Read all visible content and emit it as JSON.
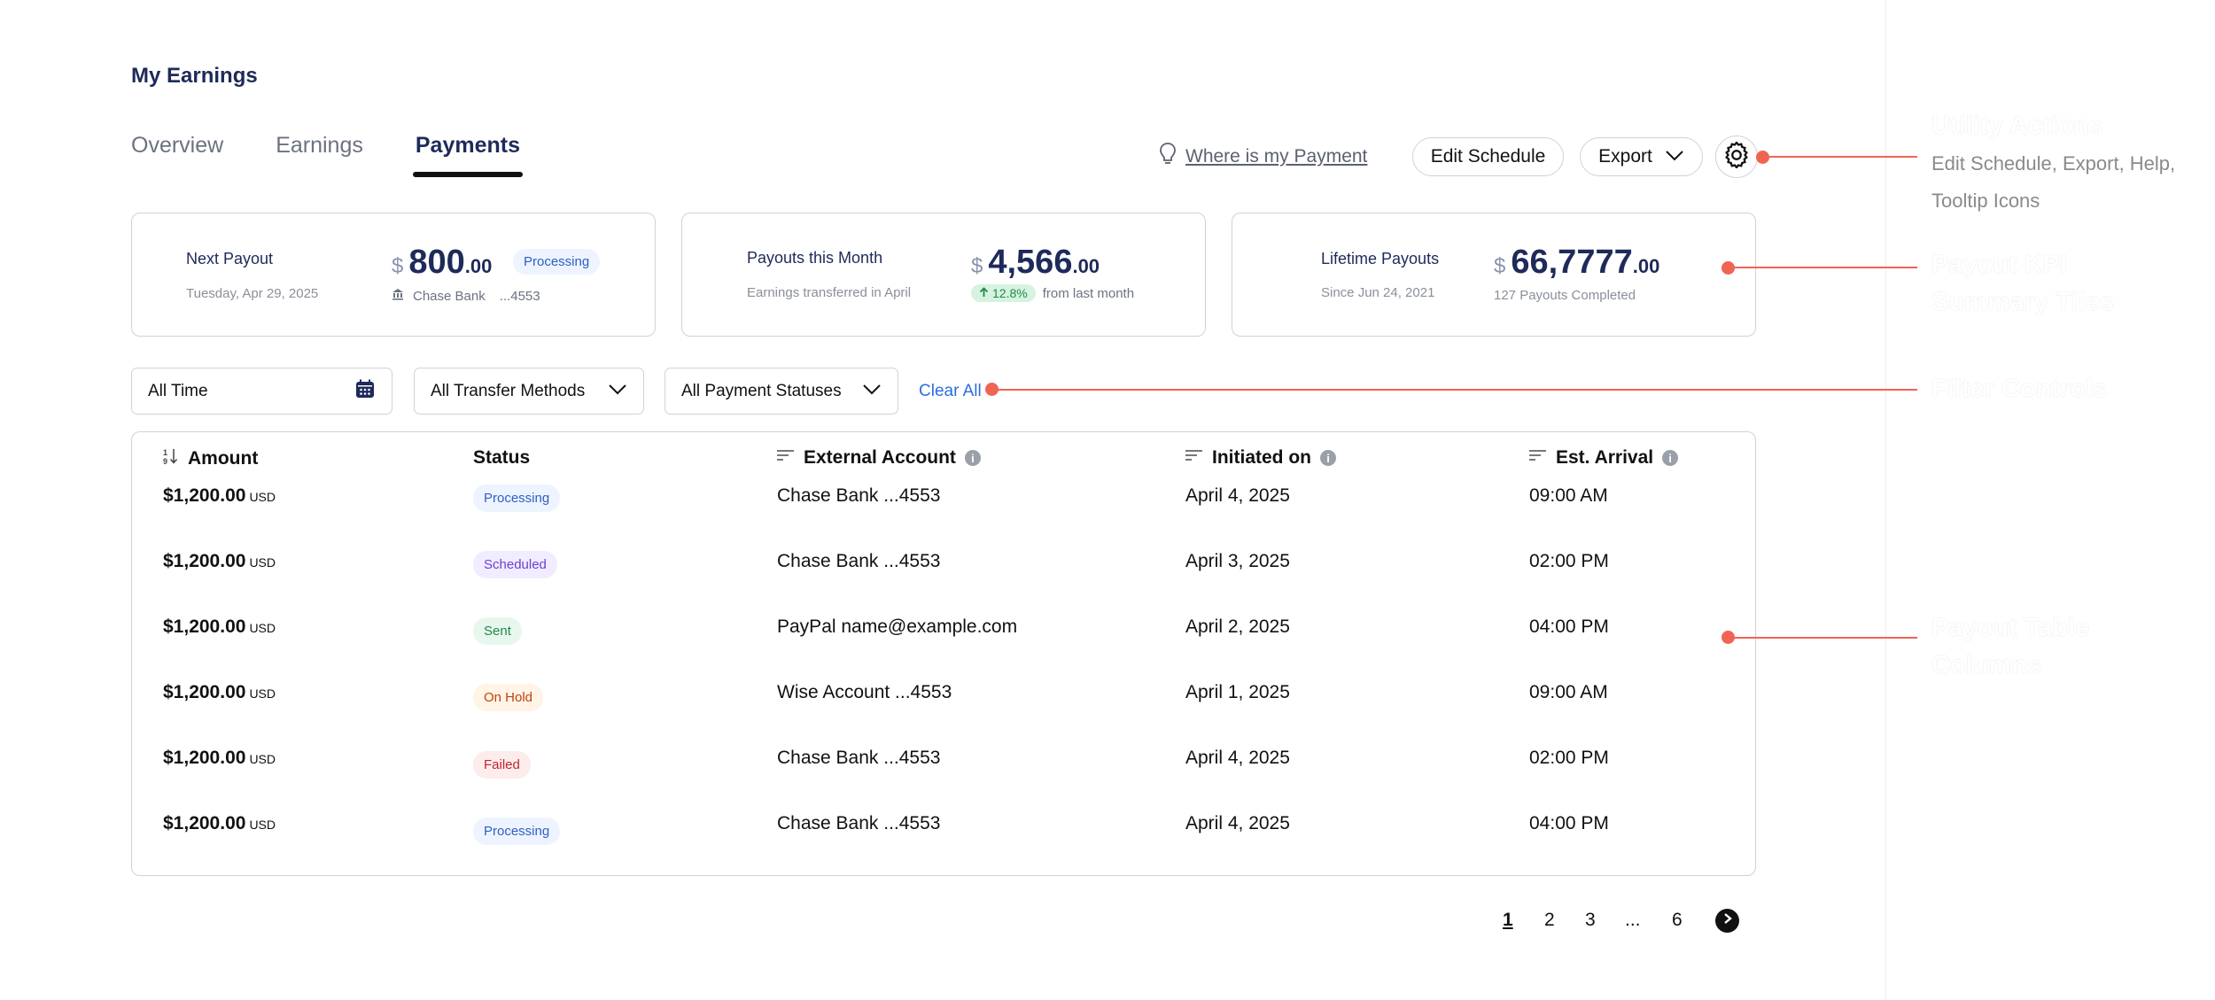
{
  "page_title": "My Earnings",
  "tabs": [
    {
      "label": "Overview"
    },
    {
      "label": "Earnings"
    },
    {
      "label": "Payments"
    }
  ],
  "header_actions": {
    "help_link": "Where is my Payment",
    "edit_schedule": "Edit Schedule",
    "export": "Export",
    "settings_icon": "gear-icon"
  },
  "kpis": {
    "next_payout": {
      "label": "Next Payout",
      "date": "Tuesday, Apr 29, 2025",
      "currency": "$",
      "whole": "800",
      "cents": ".00",
      "status": "Processing",
      "bank_icon": "bank-icon",
      "bank": "Chase Bank",
      "account": "...4553"
    },
    "this_month": {
      "label": "Payouts this Month",
      "sub": "Earnings transferred in April",
      "currency": "$",
      "whole": "4,566",
      "cents": ".00",
      "change": "12.8%",
      "change_note": "from last month"
    },
    "lifetime": {
      "label": "Lifetime Payouts",
      "sub": "Since Jun 24, 2021",
      "currency": "$",
      "whole": "66,7777",
      "cents": ".00",
      "count": "127 Payouts Completed"
    }
  },
  "filters": {
    "date": "All Time",
    "method": "All Transfer Methods",
    "status": "All Payment Statuses",
    "clear": "Clear All"
  },
  "table": {
    "headers": {
      "amount": "Amount",
      "status": "Status",
      "account": "External Account",
      "initiated": "Initiated on",
      "arrival": "Est. Arrival"
    },
    "rows": [
      {
        "amount": "$1,200.00",
        "unit": "USD",
        "status": "Processing",
        "account": "Chase Bank  ...4553",
        "initiated": "April 4, 2025",
        "arrival": "09:00 AM"
      },
      {
        "amount": "$1,200.00",
        "unit": "USD",
        "status": "Scheduled",
        "account": "Chase Bank  ...4553",
        "initiated": "April 3, 2025",
        "arrival": "02:00 PM"
      },
      {
        "amount": "$1,200.00",
        "unit": "USD",
        "status": "Sent",
        "account": "PayPal  name@example.com",
        "initiated": "April 2, 2025",
        "arrival": "04:00 PM"
      },
      {
        "amount": "$1,200.00",
        "unit": "USD",
        "status": "On Hold",
        "account": "Wise Account  ...4553",
        "initiated": "April 1, 2025",
        "arrival": "09:00 AM"
      },
      {
        "amount": "$1,200.00",
        "unit": "USD",
        "status": "Failed",
        "account": "Chase Bank  ...4553",
        "initiated": "April 4, 2025",
        "arrival": "02:00 PM"
      },
      {
        "amount": "$1,200.00",
        "unit": "USD",
        "status": "Processing",
        "account": "Chase Bank  ...4553",
        "initiated": "April 4, 2025",
        "arrival": "04:00 PM"
      }
    ]
  },
  "pagination": {
    "pages": [
      "1",
      "2",
      "3",
      "...",
      "6"
    ],
    "current": "1"
  },
  "annotations": [
    {
      "title": "Utility Actions",
      "desc": "Edit Schedule, Export, Help, Tooltip Icons"
    },
    {
      "title": "Payout KPI Summary Tiles"
    },
    {
      "title": "Filter Controls"
    },
    {
      "title": "Payout Table Columns"
    }
  ],
  "colors": {
    "brand_navy": "#1e2a5a",
    "link_blue": "#2a6fdb",
    "callout_red": "#f06454",
    "processing": "#2e5fc2",
    "scheduled": "#6d3fd6",
    "sent": "#1f8a4c",
    "on_hold": "#c2410c",
    "failed": "#c0262d"
  }
}
